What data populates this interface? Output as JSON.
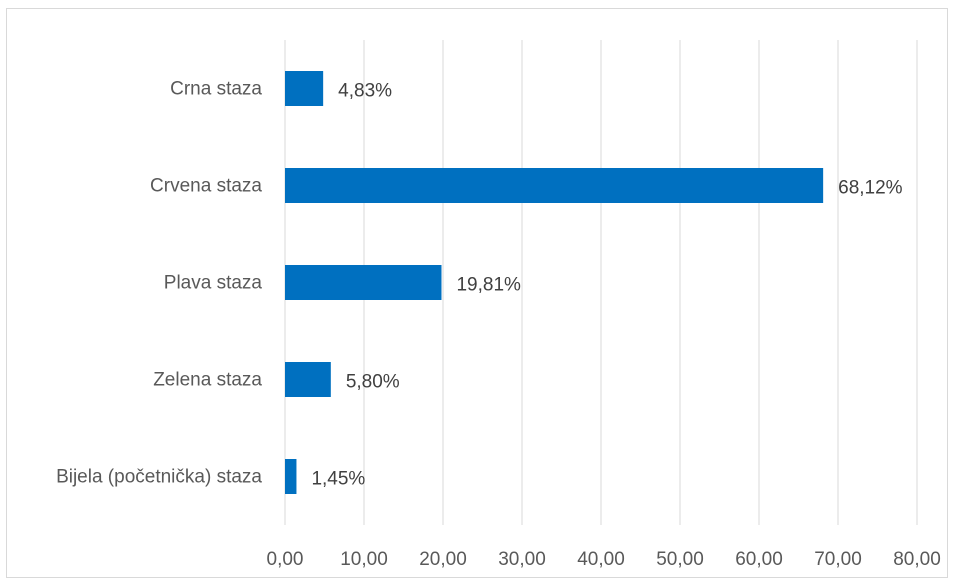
{
  "chart_data": {
    "type": "bar",
    "orientation": "horizontal",
    "title": "",
    "xlabel": "",
    "ylabel": "",
    "categories": [
      "Crna staza",
      "Crvena staza",
      "Plava staza",
      "Zelena staza",
      "Bijela (početnička) staza"
    ],
    "values": [
      4.83,
      68.12,
      19.81,
      5.8,
      1.45
    ],
    "data_labels": [
      "4,83%",
      "68,12%",
      "19,81%",
      "5,80%",
      "1,45%"
    ],
    "xlim": [
      0,
      80
    ],
    "x_ticks": [
      0,
      10,
      20,
      30,
      40,
      50,
      60,
      70,
      80
    ],
    "x_tick_labels": [
      "0,00",
      "10,00",
      "20,00",
      "30,00",
      "40,00",
      "50,00",
      "60,00",
      "70,00",
      "80,00"
    ],
    "grid": "vertical",
    "legend": "none",
    "colors": {
      "bar": "#0070C0",
      "grid": "#d9d9d9",
      "text": "#595959"
    }
  }
}
